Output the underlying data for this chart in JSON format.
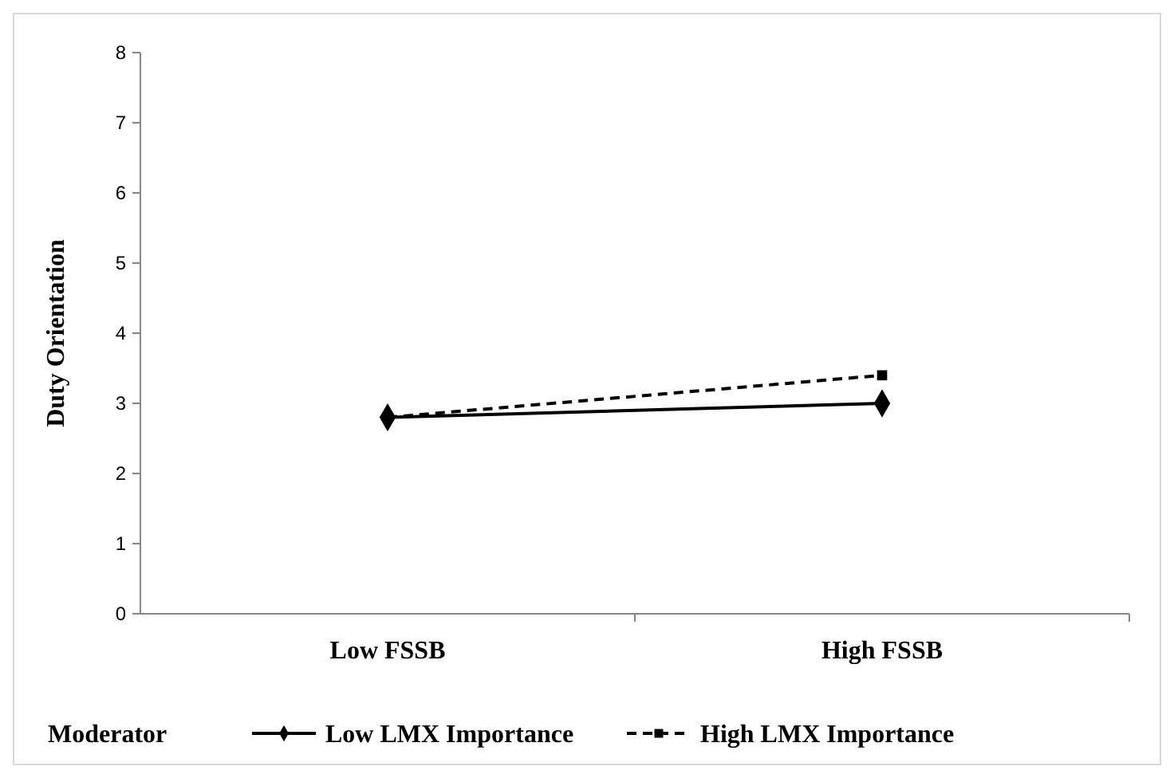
{
  "chart_data": {
    "type": "line",
    "ylabel": "Duty Orientation",
    "legend_title": "Moderator",
    "categories": [
      "Low FSSB",
      "High FSSB"
    ],
    "series": [
      {
        "name": "Low LMX Importance",
        "color": "#000000",
        "values": [
          2.8,
          3.0
        ],
        "marker": "diamond",
        "line_style": "solid"
      },
      {
        "name": "High LMX Importance",
        "color": "#000000",
        "values": [
          2.8,
          3.4
        ],
        "marker": "square",
        "line_style": "dashed"
      }
    ],
    "ylim": [
      0,
      8
    ],
    "yticks": [
      0,
      1,
      2,
      3,
      4,
      5,
      6,
      7,
      8
    ],
    "grid": false,
    "legend": "bottom"
  }
}
